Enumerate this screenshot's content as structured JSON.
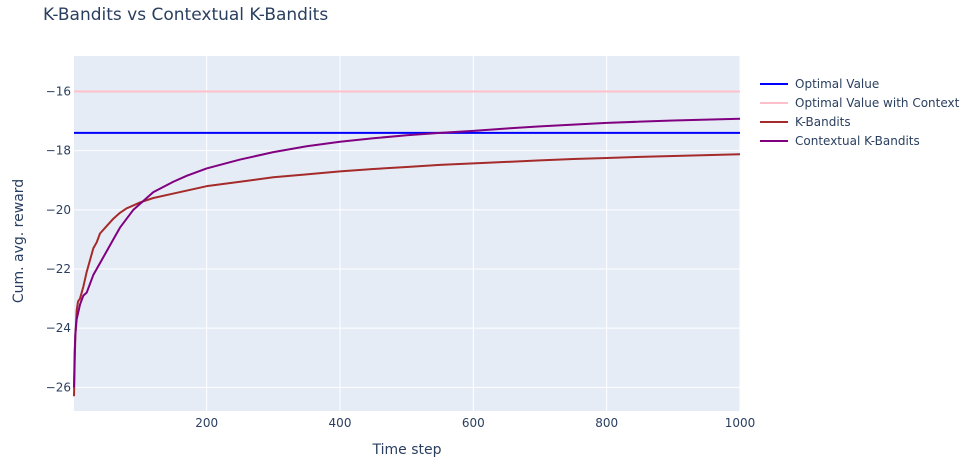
{
  "chart_data": {
    "type": "line",
    "title": "K-Bandits vs Contextual K-Bandits",
    "xlabel": "Time step",
    "ylabel": "Cum. avg. reward",
    "xlim": [
      1,
      1000
    ],
    "ylim": [
      -26.8,
      -14.8
    ],
    "xticks": [
      200,
      400,
      600,
      800,
      1000
    ],
    "xtick_labels": [
      "200",
      "400",
      "600",
      "800",
      "1000"
    ],
    "yticks": [
      -26,
      -24,
      -22,
      -20,
      -18,
      -16
    ],
    "ytick_labels": [
      "−26",
      "−24",
      "−22",
      "−20",
      "−18",
      "−16"
    ],
    "grid": true,
    "legend_position": "right",
    "plot_background": "#e5ecf6",
    "series": [
      {
        "name": "Optimal Value",
        "color": "#0000ff",
        "x": [
          1,
          1000
        ],
        "y": [
          -17.4,
          -17.4
        ]
      },
      {
        "name": "Optimal Value with Context",
        "color": "#ffc0cb",
        "x": [
          1,
          1000
        ],
        "y": [
          -16.0,
          -16.0
        ]
      },
      {
        "name": "K-Bandits",
        "color": "#a52a2a",
        "x": [
          1,
          2,
          3,
          5,
          7,
          10,
          15,
          20,
          25,
          30,
          35,
          40,
          50,
          60,
          70,
          80,
          90,
          100,
          120,
          150,
          200,
          250,
          300,
          350,
          400,
          450,
          500,
          550,
          600,
          650,
          700,
          750,
          800,
          850,
          900,
          950,
          1000
        ],
        "y": [
          -26.3,
          -25.2,
          -24.3,
          -23.4,
          -23.1,
          -23.0,
          -22.6,
          -22.1,
          -21.7,
          -21.3,
          -21.1,
          -20.8,
          -20.55,
          -20.3,
          -20.1,
          -19.95,
          -19.85,
          -19.75,
          -19.6,
          -19.45,
          -19.2,
          -19.05,
          -18.9,
          -18.8,
          -18.7,
          -18.62,
          -18.55,
          -18.48,
          -18.43,
          -18.38,
          -18.33,
          -18.28,
          -18.25,
          -18.21,
          -18.18,
          -18.15,
          -18.12
        ]
      },
      {
        "name": "Contextual K-Bandits",
        "color": "#800080",
        "x": [
          1,
          2,
          3,
          5,
          7,
          10,
          15,
          20,
          25,
          30,
          40,
          50,
          60,
          70,
          80,
          90,
          100,
          120,
          150,
          170,
          200,
          250,
          300,
          350,
          400,
          450,
          500,
          550,
          600,
          650,
          700,
          750,
          800,
          850,
          900,
          950,
          1000
        ],
        "y": [
          -26.0,
          -24.8,
          -24.2,
          -23.7,
          -23.5,
          -23.2,
          -22.9,
          -22.8,
          -22.5,
          -22.2,
          -21.8,
          -21.4,
          -21.0,
          -20.6,
          -20.3,
          -20.0,
          -19.8,
          -19.4,
          -19.05,
          -18.85,
          -18.6,
          -18.3,
          -18.05,
          -17.85,
          -17.7,
          -17.58,
          -17.48,
          -17.4,
          -17.33,
          -17.25,
          -17.18,
          -17.12,
          -17.06,
          -17.02,
          -16.98,
          -16.95,
          -16.92
        ]
      }
    ]
  }
}
